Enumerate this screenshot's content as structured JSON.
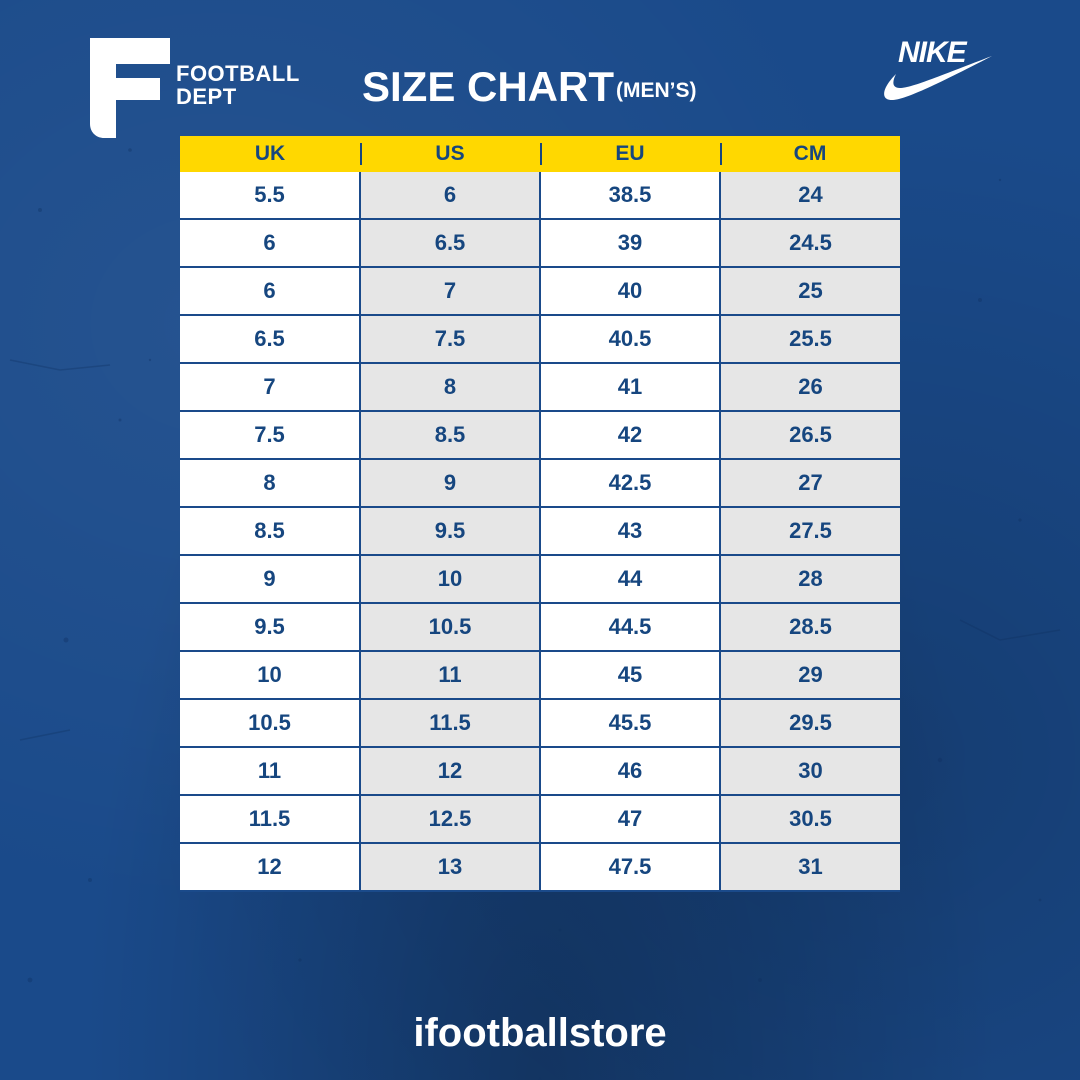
{
  "brand": {
    "line1": "FOOTBALL",
    "line2": "DEPT",
    "icon": "football-dept-f-logo"
  },
  "title": {
    "main": "SIZE CHART",
    "sup": "(MEN’S)"
  },
  "partner_logo": {
    "text": "NIKE",
    "icon": "nike-swoosh-logo"
  },
  "table": {
    "headers": [
      "UK",
      "US",
      "EU",
      "CM"
    ],
    "rows": [
      [
        "5.5",
        "6",
        "38.5",
        "24"
      ],
      [
        "6",
        "6.5",
        "39",
        "24.5"
      ],
      [
        "6",
        "7",
        "40",
        "25"
      ],
      [
        "6.5",
        "7.5",
        "40.5",
        "25.5"
      ],
      [
        "7",
        "8",
        "41",
        "26"
      ],
      [
        "7.5",
        "8.5",
        "42",
        "26.5"
      ],
      [
        "8",
        "9",
        "42.5",
        "27"
      ],
      [
        "8.5",
        "9.5",
        "43",
        "27.5"
      ],
      [
        "9",
        "10",
        "44",
        "28"
      ],
      [
        "9.5",
        "10.5",
        "44.5",
        "28.5"
      ],
      [
        "10",
        "11",
        "45",
        "29"
      ],
      [
        "10.5",
        "11.5",
        "45.5",
        "29.5"
      ],
      [
        "11",
        "12",
        "46",
        "30"
      ],
      [
        "11.5",
        "12.5",
        "47",
        "30.5"
      ],
      [
        "12",
        "13",
        "47.5",
        "31"
      ]
    ]
  },
  "footer": {
    "text": "ifootballstore"
  },
  "colors": {
    "background": "#1a4a8a",
    "header_fill": "#ffd800",
    "cell_text": "#16467f",
    "cell_white": "#ffffff",
    "cell_gray": "#e6e6e6"
  }
}
